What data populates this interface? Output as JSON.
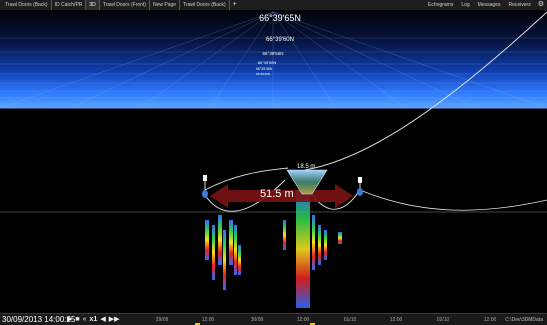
{
  "topbar": {
    "tabs": [
      {
        "label": "Trawl Doors (Back)"
      },
      {
        "label": "ID Catch/PR"
      },
      {
        "label": "3D"
      },
      {
        "label": "Trawl Doors (Front)"
      },
      {
        "label": "New Page"
      },
      {
        "label": "Trawl Doors (Back)"
      }
    ],
    "add_tab": "+",
    "menus": [
      {
        "label": "Echograms"
      },
      {
        "label": "Log"
      },
      {
        "label": "Messages"
      },
      {
        "label": "Receivers"
      }
    ],
    "active_tab": "3D"
  },
  "scene": {
    "latitude_labels": [
      "66°39'65N",
      "66°39'60N",
      "66°39'55N",
      "66°39'50N",
      "66°39'45N",
      "66°39'40N"
    ],
    "door_distance": "51.5 m",
    "depth_label": "18.5 m"
  },
  "timeline": {
    "datetime": "30/09/2013 14:00:25",
    "speed": "x1",
    "tick_labels": [
      "29/09",
      "12:00",
      "30/09",
      "12:00",
      "01/10",
      "12:00",
      "02/10",
      "12:00"
    ],
    "path": "C:\\Dev\\3DMData"
  },
  "colors": {
    "sky_blue": "#2f7cff",
    "door_arrow": "#7a1212",
    "marker_yellow": "#f3c000"
  },
  "icons": {
    "play": "play-icon",
    "stop": "stop-icon",
    "rewind": "rewind-icon",
    "skip_start": "skip-start-icon",
    "skip_end": "skip-end-icon",
    "settings": "gear-icon"
  }
}
